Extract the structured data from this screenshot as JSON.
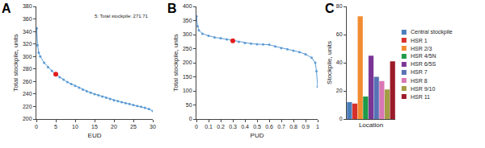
{
  "chart_data": [
    {
      "type": "line",
      "title": "A",
      "x_label": "EUD",
      "y_label": "Total stockpile, units",
      "annotations": [
        "5: Total stockpile: 271.71"
      ],
      "x": [
        0.1,
        0.3,
        0.6,
        1,
        2,
        3,
        4,
        5,
        6,
        7,
        8,
        9,
        10,
        11,
        12,
        13,
        14,
        15,
        16,
        17,
        18,
        19,
        20,
        21,
        22,
        23,
        24,
        25,
        26,
        27,
        28,
        29,
        30
      ],
      "series": [
        {
          "color": "#5b9bd5",
          "marker": "circle",
          "line_style": "solid",
          "values": [
            345,
            318,
            306,
            300,
            290,
            283,
            277,
            271.71,
            267,
            263,
            259,
            256,
            253,
            250,
            247,
            244.5,
            242,
            240,
            238,
            236,
            234,
            232,
            230,
            228.5,
            227,
            225.5,
            224,
            222.5,
            221,
            219.5,
            218,
            216,
            213
          ]
        },
        {
          "color": "#e41a1c",
          "marker": "circle",
          "type": "scatter",
          "values": [
            null,
            null,
            null,
            null,
            null,
            null,
            null,
            271.71,
            null,
            null,
            null,
            null,
            null,
            null,
            null,
            null,
            null,
            null,
            null,
            null,
            null,
            null,
            null,
            null,
            null,
            null,
            null,
            null,
            null,
            null,
            null,
            null,
            null
          ]
        }
      ],
      "xlim": [
        0,
        30
      ],
      "xticks": [
        0,
        5,
        10,
        15,
        20,
        25,
        30
      ],
      "ylim": [
        200,
        380
      ],
      "yticks": [
        200,
        220,
        240,
        260,
        280,
        300,
        320,
        340,
        360,
        380
      ],
      "grid": false
    },
    {
      "type": "line",
      "title": "B",
      "x_label": "PUD",
      "y_label": "Total stockpile, units",
      "x": [
        0,
        0.01,
        0.02,
        0.05,
        0.1,
        0.15,
        0.2,
        0.25,
        0.3,
        0.35,
        0.4,
        0.45,
        0.5,
        0.55,
        0.6,
        0.65,
        0.7,
        0.75,
        0.8,
        0.85,
        0.9,
        0.95,
        0.98,
        0.99,
        1
      ],
      "series": [
        {
          "color": "#5b9bd5",
          "marker": "circle",
          "line_style": "solid",
          "values": [
            365,
            330,
            315,
            303,
            296,
            290,
            287,
            283,
            278,
            274,
            270,
            268,
            266,
            265,
            264,
            258,
            252,
            248,
            243,
            238,
            230,
            218,
            200,
            170,
            115
          ]
        },
        {
          "color": "#e41a1c",
          "marker": "circle",
          "type": "scatter",
          "values": [
            null,
            null,
            null,
            null,
            null,
            null,
            null,
            null,
            278,
            null,
            null,
            null,
            null,
            null,
            null,
            null,
            null,
            null,
            null,
            null,
            null,
            null,
            null,
            null,
            null
          ]
        }
      ],
      "xlim": [
        0,
        1
      ],
      "xticks": [
        0,
        0.1,
        0.2,
        0.3,
        0.4,
        0.5,
        0.6,
        0.7,
        0.8,
        0.9,
        1
      ],
      "ylim": [
        0,
        400
      ],
      "yticks": [
        0,
        50,
        100,
        150,
        200,
        250,
        300,
        350,
        400
      ],
      "grid": false
    },
    {
      "type": "bar",
      "title": "C",
      "x_label": "Location",
      "y_label": "Stockpile, units",
      "categories": [
        "Central stockpile",
        "HSR 1",
        "HSR 2/3",
        "HSR 4/5N",
        "HSR 6/5S",
        "HSR 7",
        "HSR 8",
        "HSR 9/10",
        "HSR 11"
      ],
      "values": [
        12,
        11,
        73,
        16,
        45,
        30,
        27,
        21,
        41
      ],
      "colors": [
        "#4a7ebb",
        "#d7302c",
        "#f28b30",
        "#1f9a48",
        "#7a3595",
        "#5872b5",
        "#d877b4",
        "#a39d45",
        "#9b1b2a"
      ],
      "ylim": [
        0,
        80
      ],
      "yticks": [
        0,
        20,
        40,
        60,
        80
      ],
      "legend": "right",
      "tick_labels": "y",
      "grid": false
    }
  ]
}
